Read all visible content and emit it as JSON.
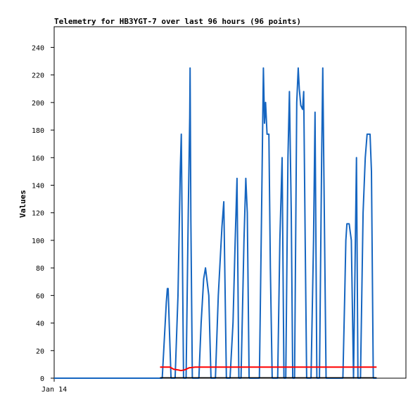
{
  "chart_data": {
    "type": "line",
    "title": "Telemetry for HB3YGT-7 over last 96 hours (96 points)",
    "xlabel": "",
    "ylabel": "Values",
    "x_tick_labels": [
      "Jan 14"
    ],
    "y_ticks": [
      0,
      20,
      40,
      60,
      80,
      100,
      120,
      140,
      160,
      180,
      200,
      220,
      240
    ],
    "ylim": [
      0,
      255
    ],
    "grid": false,
    "legend": "none",
    "series": [
      {
        "color": "#1565c0",
        "points": [
          [
            0,
            0
          ],
          [
            5,
            0
          ],
          [
            20,
            0
          ],
          [
            29,
            0
          ],
          [
            29.5,
            0
          ],
          [
            30.6,
            55
          ],
          [
            30.9,
            65
          ],
          [
            31.1,
            65
          ],
          [
            31.4,
            40
          ],
          [
            31.9,
            0
          ],
          [
            33,
            0
          ],
          [
            33.8,
            60
          ],
          [
            34.4,
            150
          ],
          [
            34.7,
            177
          ],
          [
            35.3,
            0
          ],
          [
            36,
            0
          ],
          [
            36.6,
            120
          ],
          [
            37.0,
            190
          ],
          [
            37.1,
            225
          ],
          [
            37.3,
            115
          ],
          [
            37.7,
            0
          ],
          [
            39.5,
            0
          ],
          [
            40.1,
            40
          ],
          [
            40.8,
            72
          ],
          [
            41.3,
            80
          ],
          [
            42.2,
            60
          ],
          [
            42.8,
            0
          ],
          [
            44,
            0
          ],
          [
            44.8,
            60
          ],
          [
            45.8,
            110
          ],
          [
            46.3,
            128
          ],
          [
            47,
            0
          ],
          [
            48,
            0
          ],
          [
            48.8,
            40
          ],
          [
            49.4,
            100
          ],
          [
            49.9,
            145
          ],
          [
            50.4,
            0
          ],
          [
            51,
            0
          ],
          [
            51.8,
            100
          ],
          [
            52.3,
            145
          ],
          [
            52.7,
            120
          ],
          [
            53.2,
            0
          ],
          [
            56,
            0
          ],
          [
            56.6,
            120
          ],
          [
            57.1,
            225
          ],
          [
            57.4,
            185
          ],
          [
            57.7,
            200
          ],
          [
            58.1,
            177
          ],
          [
            58.6,
            177
          ],
          [
            59.0,
            80
          ],
          [
            59.5,
            0
          ],
          [
            61,
            0
          ],
          [
            61.6,
            100
          ],
          [
            62.2,
            160
          ],
          [
            62.7,
            0
          ],
          [
            63.2,
            0
          ],
          [
            63.8,
            160
          ],
          [
            64.2,
            208
          ],
          [
            64.7,
            120
          ],
          [
            65.1,
            0
          ],
          [
            65.6,
            0
          ],
          [
            66.2,
            200
          ],
          [
            66.6,
            225
          ],
          [
            66.9,
            210
          ],
          [
            67.3,
            198
          ],
          [
            67.8,
            195
          ],
          [
            68.1,
            208
          ],
          [
            68.5,
            100
          ],
          [
            68.9,
            0
          ],
          [
            70.1,
            0
          ],
          [
            70.8,
            100
          ],
          [
            71.2,
            193
          ],
          [
            71.7,
            0
          ],
          [
            72.4,
            0
          ],
          [
            73.0,
            160
          ],
          [
            73.3,
            225
          ],
          [
            73.8,
            100
          ],
          [
            74.2,
            0
          ],
          [
            78.8,
            0
          ],
          [
            79.3,
            60
          ],
          [
            79.6,
            100
          ],
          [
            79.9,
            112
          ],
          [
            80.5,
            112
          ],
          [
            81.1,
            100
          ],
          [
            81.7,
            0
          ],
          [
            82.0,
            60
          ],
          [
            82.5,
            160
          ],
          [
            82.9,
            0
          ],
          [
            83.6,
            0
          ],
          [
            84.3,
            120
          ],
          [
            84.9,
            160
          ],
          [
            85.4,
            177
          ],
          [
            86.2,
            177
          ],
          [
            86.6,
            150
          ],
          [
            87.1,
            0
          ],
          [
            88,
            0
          ]
        ]
      },
      {
        "color": "#ff0000",
        "points": [
          [
            28.9,
            8
          ],
          [
            30,
            8
          ],
          [
            31.6,
            8
          ],
          [
            32.6,
            6.5
          ],
          [
            33.8,
            6
          ],
          [
            34.6,
            5.5
          ],
          [
            35.6,
            6
          ],
          [
            36.8,
            7.5
          ],
          [
            38.5,
            8
          ],
          [
            45,
            8
          ],
          [
            60,
            8
          ],
          [
            75,
            8
          ],
          [
            88,
            8
          ]
        ]
      },
      {
        "color": "#000000",
        "points": [
          [
            28.9,
            0.3
          ],
          [
            88,
            0.3
          ]
        ]
      }
    ]
  }
}
